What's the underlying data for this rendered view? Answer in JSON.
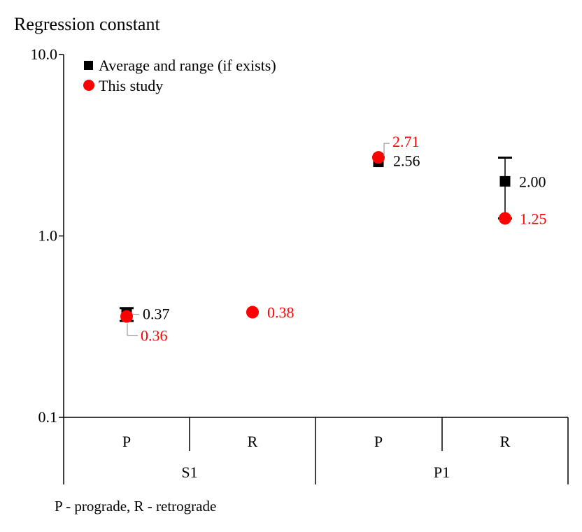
{
  "chart_data": {
    "type": "scatter",
    "ylabel": "Regression constant",
    "yscale": "log",
    "ylim": [
      0.1,
      10.0
    ],
    "yticks": [
      "0.1",
      "1.0",
      "10.0"
    ],
    "groups": [
      {
        "label": "S1",
        "subcategories": [
          "P",
          "R"
        ]
      },
      {
        "label": "P1",
        "subcategories": [
          "P",
          "R"
        ]
      }
    ],
    "categories": [
      "S1 P",
      "S1 R",
      "P1 P",
      "P1 R"
    ],
    "series": [
      {
        "name": "Average and range (if exists)",
        "marker": "square",
        "color": "#000000",
        "points": [
          {
            "category": "S1 P",
            "value": 0.37,
            "label": "0.37",
            "range": [
              0.34,
              0.4
            ]
          },
          {
            "category": "P1 P",
            "value": 2.56,
            "label": "2.56",
            "range": null
          },
          {
            "category": "P1 R",
            "value": 2.0,
            "label": "2.00",
            "range": [
              1.25,
              2.7
            ]
          }
        ]
      },
      {
        "name": "This study",
        "marker": "circle",
        "color": "#ff0000",
        "points": [
          {
            "category": "S1 P",
            "value": 0.36,
            "label": "0.36"
          },
          {
            "category": "S1 R",
            "value": 0.38,
            "label": "0.38"
          },
          {
            "category": "P1 P",
            "value": 2.71,
            "label": "2.71"
          },
          {
            "category": "P1 R",
            "value": 1.25,
            "label": "1.25"
          }
        ]
      }
    ],
    "legend_position": "top-left",
    "footnote": "P - prograde, R - retrograde"
  }
}
